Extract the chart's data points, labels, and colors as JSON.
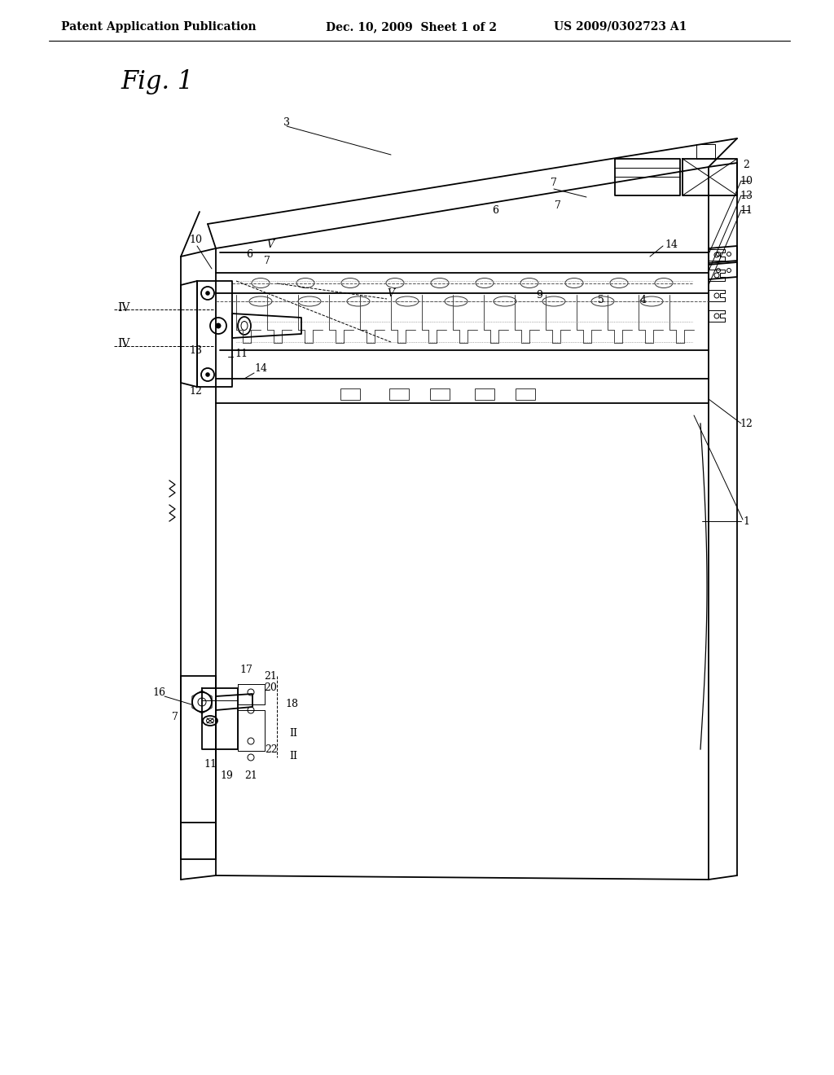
{
  "bg_color": "#ffffff",
  "line_color": "#000000",
  "header_left": "Patent Application Publication",
  "header_mid": "Dec. 10, 2009  Sheet 1 of 2",
  "header_right": "US 2009/0302723 A1",
  "fig_label": "Fig. 1",
  "header_font_size": 10,
  "fig_label_font_size": 22,
  "lw_main": 1.3,
  "lw_thin": 0.7,
  "lw_thick": 1.8
}
